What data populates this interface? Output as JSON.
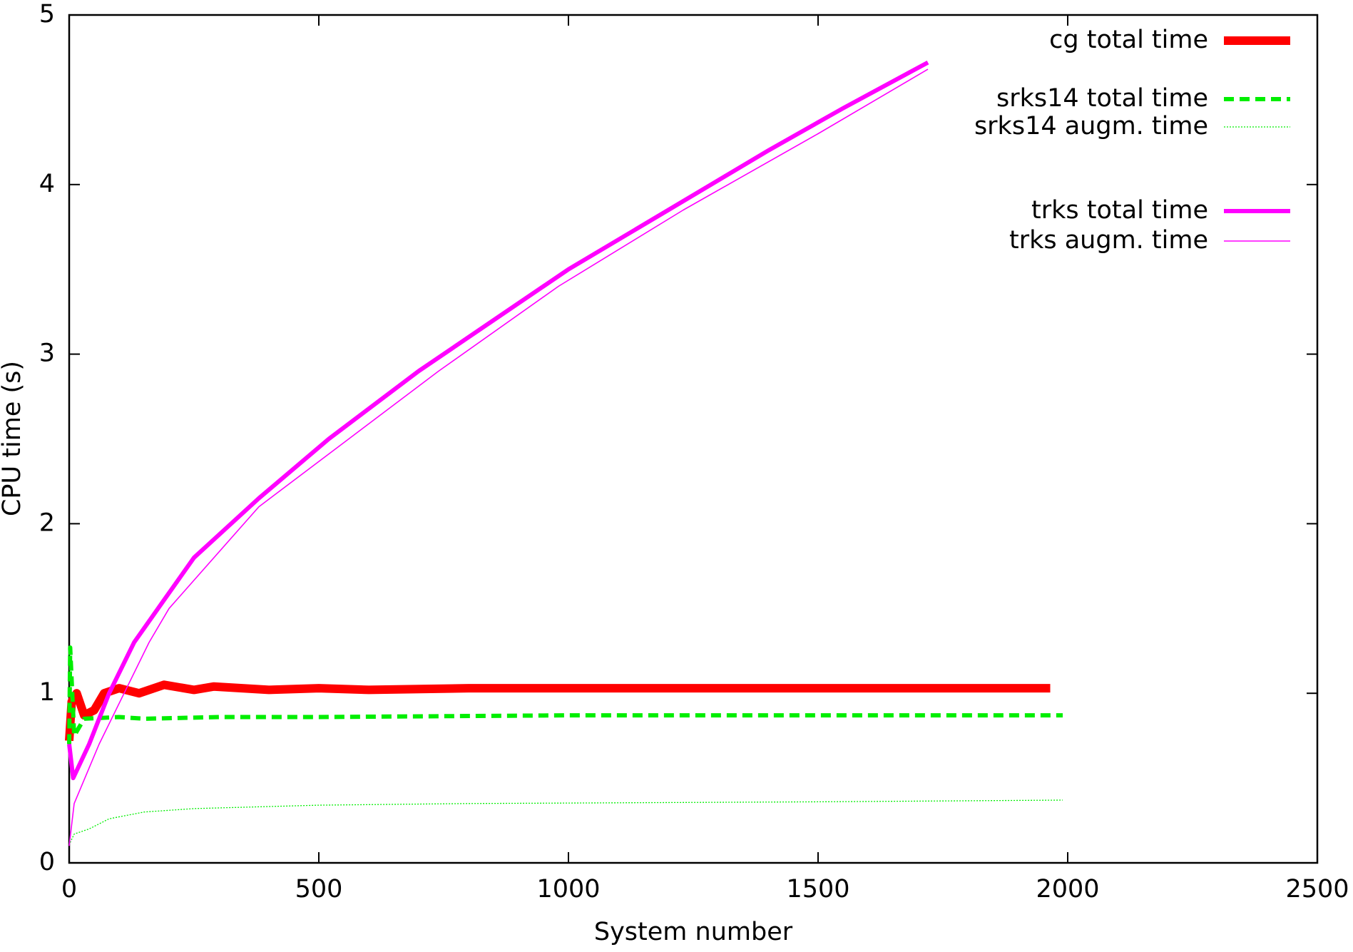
{
  "chart_data": {
    "type": "line",
    "xlabel": "System number",
    "ylabel": "CPU time (s)",
    "xlim": [
      0,
      2500
    ],
    "xticks": [
      0,
      500,
      1000,
      1500,
      2000,
      2500
    ],
    "ylim": [
      0,
      5
    ],
    "yticks": [
      0,
      1,
      2,
      3,
      4,
      5
    ],
    "legend": "upper right",
    "series": [
      {
        "name": "cg total time",
        "color": "#ff0000",
        "x": [
          0,
          5,
          15,
          30,
          50,
          70,
          100,
          140,
          190,
          250,
          290,
          400,
          500,
          600,
          800,
          1000,
          1500,
          1965
        ],
        "values": [
          0.72,
          0.95,
          1.0,
          0.87,
          0.9,
          1.0,
          1.03,
          1.0,
          1.05,
          1.02,
          1.04,
          1.02,
          1.03,
          1.02,
          1.03,
          1.03,
          1.03,
          1.03
        ]
      },
      {
        "name": "srks14 total time",
        "color": "#00ee00",
        "x": [
          0,
          2,
          10,
          30,
          100,
          150,
          300,
          500,
          1000,
          1990
        ],
        "values": [
          0.7,
          1.27,
          0.75,
          0.85,
          0.86,
          0.85,
          0.86,
          0.86,
          0.87,
          0.87
        ]
      },
      {
        "name": "srks14 augm. time",
        "color": "#00ee00",
        "x": [
          2,
          10,
          40,
          80,
          150,
          250,
          500,
          800,
          1500,
          1990
        ],
        "values": [
          0.12,
          0.17,
          0.2,
          0.26,
          0.3,
          0.32,
          0.34,
          0.35,
          0.36,
          0.37
        ]
      },
      {
        "name": "trks total time",
        "color": "#ff00ff",
        "x": [
          0,
          8,
          40,
          80,
          130,
          190,
          250,
          380,
          520,
          700,
          850,
          1000,
          1200,
          1400,
          1550,
          1720
        ],
        "values": [
          0.7,
          0.5,
          0.7,
          1.0,
          1.3,
          1.55,
          1.8,
          2.15,
          2.5,
          2.9,
          3.2,
          3.5,
          3.85,
          4.2,
          4.45,
          4.72
        ]
      },
      {
        "name": "trks augm. time",
        "color": "#ff00ff",
        "x": [
          0,
          10,
          60,
          110,
          160,
          200,
          380,
          560,
          740,
          980,
          1230,
          1500,
          1720
        ],
        "values": [
          0.1,
          0.35,
          0.7,
          1.0,
          1.3,
          1.5,
          2.1,
          2.5,
          2.9,
          3.4,
          3.85,
          4.3,
          4.68
        ]
      }
    ]
  }
}
